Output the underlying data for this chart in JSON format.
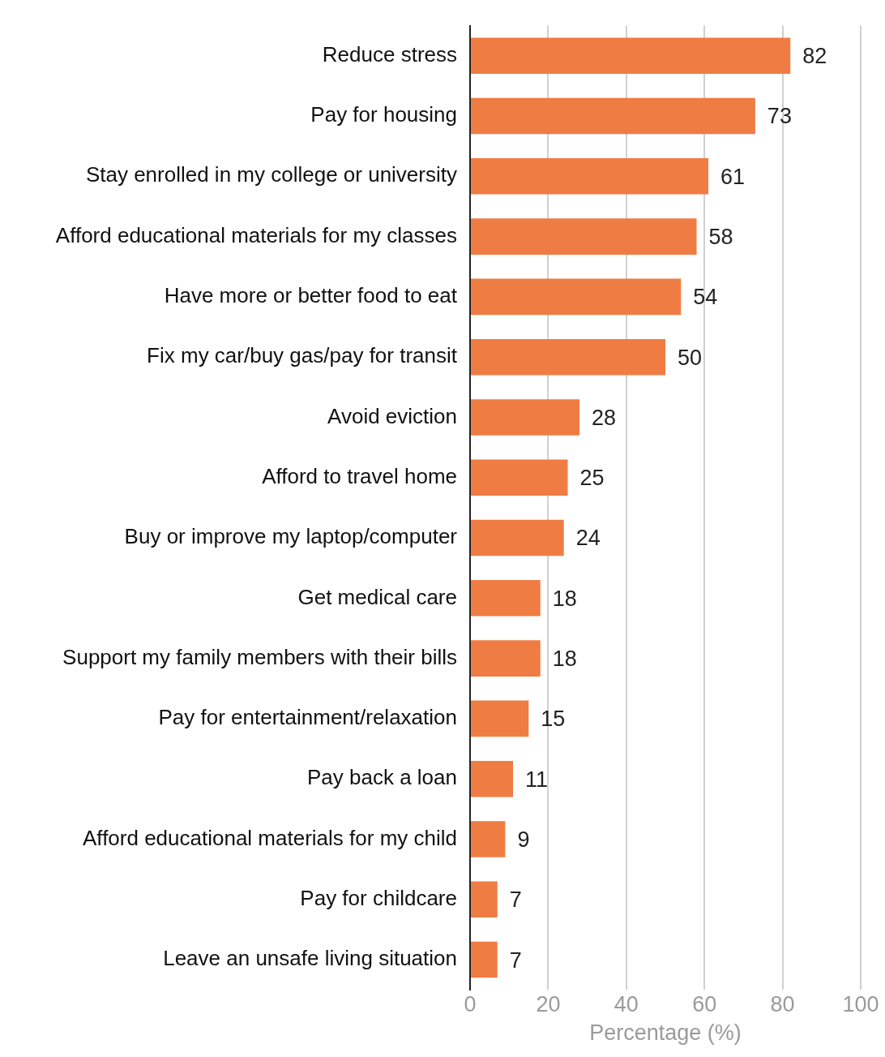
{
  "chart_data": {
    "type": "bar",
    "orientation": "horizontal",
    "xlabel": "Percentage (%)",
    "categories": [
      "Reduce stress",
      "Pay for housing",
      "Stay enrolled in my college or university",
      "Afford educational materials for my classes",
      "Have more or better food to eat",
      "Fix my car/buy gas/pay for transit",
      "Avoid eviction",
      "Afford to travel home",
      "Buy or improve my laptop/computer",
      "Get medical care",
      "Support my family members with their bills",
      "Pay for entertainment/relaxation",
      "Pay back a loan",
      "Afford educational materials for my child",
      "Pay for childcare",
      "Leave an unsafe living situation"
    ],
    "values": [
      82,
      73,
      61,
      58,
      54,
      50,
      28,
      25,
      24,
      18,
      18,
      15,
      11,
      9,
      7,
      7
    ],
    "color": "#ef7c43",
    "xlim": [
      0,
      100
    ],
    "xticks": [
      0,
      20,
      40,
      60,
      80,
      100
    ],
    "grid": "x",
    "data_labels": true,
    "legend": false
  }
}
